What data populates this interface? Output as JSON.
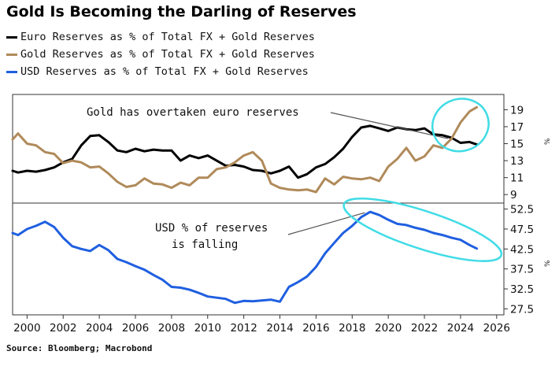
{
  "title": "Gold Is Becoming the Darling of Reserves",
  "source": "Source: Bloomberg; Macrobond",
  "colors": {
    "euro": "#000000",
    "gold": "#b08a5a",
    "usd": "#1f5fe0",
    "ellipse": "#40dce6"
  },
  "legend": [
    {
      "label": "Euro Reserves as % of Total FX + Gold Reserves",
      "color": "#000000"
    },
    {
      "label": "Gold Reserves as % of Total FX + Gold Reserves",
      "color": "#b08a5a"
    },
    {
      "label": "USD Reserves as % of Total FX + Gold Reserves",
      "color": "#1f5fe0"
    }
  ],
  "annotations": {
    "top": "Gold has overtaken euro reserves",
    "bottom_line1": "USD % of reserves",
    "bottom_line2": "is falling"
  },
  "chart_data": {
    "type": "line",
    "x_ticks": [
      "2000",
      "2002",
      "2004",
      "2006",
      "2008",
      "2010",
      "2012",
      "2014",
      "2016",
      "2018",
      "2020",
      "2022",
      "2024",
      "2026"
    ],
    "xlim": [
      1999.2,
      2026.4
    ],
    "panels": [
      {
        "name": "top",
        "y_ticks": [
          9,
          11,
          13,
          15,
          17,
          19
        ],
        "y_tick_labels": [
          "9",
          "11",
          "13",
          "15",
          "17",
          "19"
        ],
        "ylim": [
          8.0,
          20.8
        ],
        "unit": "%",
        "series": [
          {
            "key": "euro",
            "color": "#000000",
            "x": [
              1999.2,
              1999.5,
              2000.0,
              2000.5,
              2001.0,
              2001.5,
              2002.0,
              2002.5,
              2003.0,
              2003.5,
              2004.0,
              2004.5,
              2005.0,
              2005.5,
              2006.0,
              2006.5,
              2007.0,
              2007.5,
              2008.0,
              2008.5,
              2009.0,
              2009.5,
              2010.0,
              2010.5,
              2011.0,
              2011.5,
              2012.0,
              2012.5,
              2013.0,
              2013.5,
              2014.0,
              2014.5,
              2015.0,
              2015.5,
              2016.0,
              2016.5,
              2017.0,
              2017.5,
              2018.0,
              2018.5,
              2019.0,
              2019.5,
              2020.0,
              2020.5,
              2021.0,
              2021.5,
              2022.0,
              2022.5,
              2023.0,
              2023.5,
              2024.0,
              2024.5,
              2024.9
            ],
            "y": [
              11.8,
              11.6,
              11.8,
              11.7,
              11.9,
              12.2,
              12.8,
              13.2,
              14.8,
              15.9,
              16.0,
              15.2,
              14.2,
              14.0,
              14.4,
              14.1,
              14.3,
              14.2,
              14.2,
              13.0,
              13.6,
              13.3,
              13.6,
              13.0,
              12.4,
              12.5,
              12.3,
              11.9,
              11.8,
              11.5,
              11.8,
              12.3,
              11.0,
              11.4,
              12.2,
              12.6,
              13.4,
              14.4,
              15.8,
              16.9,
              17.1,
              16.8,
              16.5,
              16.9,
              16.7,
              16.6,
              16.8,
              16.1,
              16.0,
              15.7,
              15.1,
              15.2,
              14.9
            ]
          },
          {
            "key": "gold",
            "color": "#b08a5a",
            "x": [
              1999.2,
              1999.5,
              2000.0,
              2000.5,
              2001.0,
              2001.5,
              2002.0,
              2002.5,
              2003.0,
              2003.5,
              2004.0,
              2004.5,
              2005.0,
              2005.5,
              2006.0,
              2006.5,
              2007.0,
              2007.5,
              2008.0,
              2008.5,
              2009.0,
              2009.5,
              2010.0,
              2010.5,
              2011.0,
              2011.5,
              2012.0,
              2012.5,
              2013.0,
              2013.5,
              2014.0,
              2014.5,
              2015.0,
              2015.5,
              2016.0,
              2016.5,
              2017.0,
              2017.5,
              2018.0,
              2018.5,
              2019.0,
              2019.5,
              2020.0,
              2020.5,
              2021.0,
              2021.5,
              2022.0,
              2022.5,
              2023.0,
              2023.5,
              2024.0,
              2024.5,
              2024.9
            ],
            "y": [
              15.5,
              16.2,
              15.0,
              14.8,
              14.0,
              13.8,
              12.7,
              13.0,
              12.8,
              12.2,
              12.3,
              11.5,
              10.5,
              9.9,
              10.1,
              10.9,
              10.3,
              10.2,
              9.8,
              10.4,
              10.1,
              11.0,
              11.0,
              12.0,
              12.2,
              12.8,
              13.6,
              14.0,
              13.0,
              10.3,
              9.8,
              9.6,
              9.5,
              9.6,
              9.3,
              10.9,
              10.2,
              11.1,
              10.9,
              10.8,
              11.0,
              10.6,
              12.3,
              13.2,
              14.5,
              13.0,
              13.5,
              14.8,
              14.5,
              15.6,
              17.5,
              18.8,
              19.3
            ]
          }
        ]
      },
      {
        "name": "bottom",
        "y_ticks": [
          27.5,
          32.5,
          37.5,
          42.5,
          47.5,
          52.5
        ],
        "y_tick_labels": [
          "27.5",
          "32.5",
          "37.5",
          "42.5",
          "47.5",
          "52.5"
        ],
        "ylim": [
          26.0,
          54.0
        ],
        "unit": "%",
        "series": [
          {
            "key": "usd",
            "color": "#1f5fe0",
            "x": [
              1999.2,
              1999.5,
              2000.0,
              2000.5,
              2001.0,
              2001.5,
              2002.0,
              2002.5,
              2003.0,
              2003.5,
              2004.0,
              2004.5,
              2005.0,
              2005.5,
              2006.0,
              2006.5,
              2007.0,
              2007.5,
              2008.0,
              2008.5,
              2009.0,
              2009.5,
              2010.0,
              2010.5,
              2011.0,
              2011.5,
              2012.0,
              2012.5,
              2013.0,
              2013.5,
              2014.0,
              2014.5,
              2015.0,
              2015.5,
              2016.0,
              2016.5,
              2017.0,
              2017.5,
              2018.0,
              2018.5,
              2019.0,
              2019.5,
              2020.0,
              2020.5,
              2021.0,
              2021.5,
              2022.0,
              2022.5,
              2023.0,
              2023.5,
              2024.0,
              2024.5,
              2024.9
            ],
            "y": [
              46.5,
              46.0,
              47.5,
              48.3,
              49.3,
              48.0,
              45.3,
              43.2,
              42.5,
              42.0,
              43.5,
              42.2,
              40.0,
              39.2,
              38.2,
              37.3,
              36.0,
              34.8,
              33.0,
              32.8,
              32.3,
              31.5,
              30.6,
              30.3,
              30.0,
              29.0,
              29.5,
              29.4,
              29.6,
              29.8,
              29.3,
              33.0,
              34.2,
              35.6,
              38.0,
              41.4,
              44.0,
              46.5,
              48.3,
              50.5,
              51.8,
              51.0,
              49.8,
              48.8,
              48.5,
              47.8,
              47.3,
              46.5,
              46.0,
              45.3,
              44.8,
              43.5,
              42.6
            ]
          }
        ]
      }
    ]
  }
}
